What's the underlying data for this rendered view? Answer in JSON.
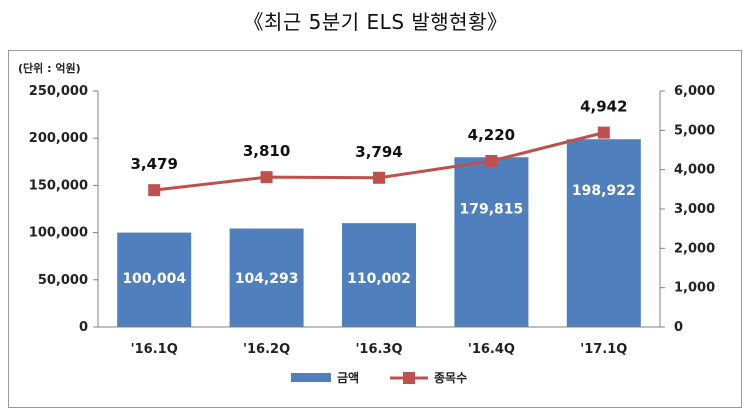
{
  "header": {
    "title": "《최근 5분기 ELS 발행현황》"
  },
  "chart_data": {
    "type": "bar",
    "title": "《최근 5분기 ELS 발행현황》",
    "unit_label": "(단위 : 억원)",
    "categories": [
      "'16.1Q",
      "'16.2Q",
      "'16.3Q",
      "'16.4Q",
      "'17.1Q"
    ],
    "series": [
      {
        "name": "금액",
        "type": "bar",
        "axis": "left",
        "values": [
          100004,
          104293,
          110002,
          179815,
          198922
        ],
        "labels": [
          "100,004",
          "104,293",
          "110,002",
          "179,815",
          "198,922"
        ],
        "color": "#4f7fbd"
      },
      {
        "name": "종목수",
        "type": "line",
        "axis": "right",
        "values": [
          3479,
          3810,
          3794,
          4220,
          4942
        ],
        "labels": [
          "3,479",
          "3,810",
          "3,794",
          "4,220",
          "4,942"
        ],
        "color": "#c0504d"
      }
    ],
    "y_left": {
      "min": 0,
      "max": 250000,
      "step": 50000,
      "ticks": [
        "0",
        "50,000",
        "100,000",
        "150,000",
        "200,000",
        "250,000"
      ]
    },
    "y_right": {
      "min": 0,
      "max": 6000,
      "step": 1000,
      "ticks": [
        "0",
        "1,000",
        "2,000",
        "3,000",
        "4,000",
        "5,000",
        "6,000"
      ]
    },
    "grid": false,
    "legend": "bottom"
  }
}
